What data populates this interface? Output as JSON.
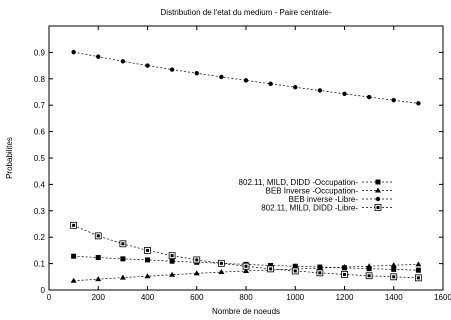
{
  "chart_data": {
    "type": "line",
    "title": "Distribution de l'etat du medium - Paire centrale-",
    "xlabel": "Nombre de noeuds",
    "ylabel": "Probabilites",
    "xlim": [
      0,
      1600
    ],
    "ylim": [
      0,
      1.0
    ],
    "xticks": [
      0,
      200,
      400,
      600,
      800,
      1000,
      1200,
      1400,
      1600
    ],
    "xtick_labels": [
      "0",
      "200",
      "400",
      "600",
      "800",
      "1000",
      "1200",
      "1400",
      "1600"
    ],
    "yticks": [
      0,
      0.1,
      0.2,
      0.3,
      0.4,
      0.5,
      0.6,
      0.7,
      0.8,
      0.9
    ],
    "ytick_labels": [
      "0",
      "0.1",
      "0.2",
      "0.3",
      "0.4",
      "0.5",
      "0.6",
      "0.7",
      "0.8",
      "0.9"
    ],
    "grid": false,
    "legend_position": "middle-right",
    "x": [
      100,
      200,
      300,
      400,
      500,
      600,
      700,
      800,
      900,
      1000,
      1100,
      1200,
      1300,
      1400,
      1500
    ],
    "series": [
      {
        "name": "802.11, MILD, DIDD -Occupation-",
        "marker": "filled-square",
        "values": [
          0.128,
          0.123,
          0.118,
          0.114,
          0.109,
          0.105,
          0.101,
          0.097,
          0.093,
          0.09,
          0.087,
          0.084,
          0.081,
          0.078,
          0.075
        ]
      },
      {
        "name": "BEB Inverse -Occupation-",
        "marker": "triangle",
        "values": [
          0.035,
          0.041,
          0.047,
          0.052,
          0.058,
          0.063,
          0.068,
          0.072,
          0.076,
          0.079,
          0.083,
          0.087,
          0.09,
          0.094,
          0.097
        ]
      },
      {
        "name": "BEB inverse -Libre-",
        "marker": "filled-circle",
        "values": [
          0.901,
          0.884,
          0.866,
          0.85,
          0.835,
          0.821,
          0.807,
          0.794,
          0.781,
          0.768,
          0.756,
          0.743,
          0.731,
          0.719,
          0.707
        ]
      },
      {
        "name": "802.11, MILD, DIDD -Libre-",
        "marker": "hollow-square",
        "values": [
          0.245,
          0.205,
          0.175,
          0.15,
          0.13,
          0.114,
          0.101,
          0.09,
          0.08,
          0.072,
          0.065,
          0.059,
          0.054,
          0.05,
          0.046
        ]
      }
    ]
  }
}
